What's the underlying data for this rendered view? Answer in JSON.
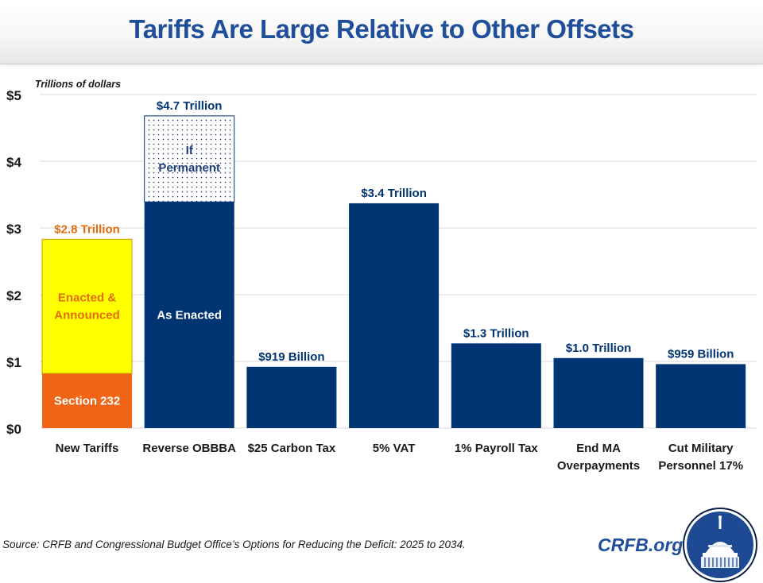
{
  "title": "Tariffs Are Large Relative to Other Offsets",
  "source": "Source: CRFB and Congressional Budget Office’s Options for Reducing the Deficit: 2025 to 2034.",
  "brand": "CRFB.org",
  "logo_icon": "capitol-dome-logo-icon",
  "colors": {
    "title": "#1f4e9b",
    "navy": "#003473",
    "orange": "#f06414",
    "orange_text": "#e46c0a",
    "yellow": "#ffff00",
    "grid": "#d9d9d9",
    "axis_text": "#1a1a1a"
  },
  "chart_data": {
    "type": "bar",
    "title": "Tariffs Are Large Relative to Other Offsets",
    "unit_label": "Trillions of dollars",
    "xlabel": "",
    "ylabel": "Trillions of dollars",
    "ylim": [
      0,
      5
    ],
    "yticks": [
      0,
      1,
      2,
      3,
      4,
      5
    ],
    "ytick_labels": [
      "$0",
      "$1",
      "$2",
      "$3",
      "$4",
      "$5"
    ],
    "grid": true,
    "categories": [
      [
        "New Tariffs"
      ],
      [
        "Reverse OBBBA"
      ],
      [
        "$25 Carbon Tax"
      ],
      [
        "5% VAT"
      ],
      [
        "1% Payroll Tax"
      ],
      [
        "End MA",
        "Overpayments"
      ],
      [
        "Cut Military",
        "Personnel 17%"
      ]
    ],
    "bars": [
      {
        "category": "New Tariffs",
        "total": 2.83,
        "total_label": "$2.8 Trillion",
        "label_color": "orange_text",
        "segments": [
          {
            "name": "Section 232",
            "value": 0.82,
            "style": "orange",
            "label": "Section 232",
            "label_color": "#ffffff"
          },
          {
            "name": "Enacted & Announced",
            "value": 2.01,
            "style": "yellow",
            "label_lines": [
              "Enacted &",
              "Announced"
            ],
            "label_color": "#e46c0a"
          }
        ]
      },
      {
        "category": "Reverse OBBBA",
        "total": 4.68,
        "total_label": "$4.7 Trillion",
        "label_color": "navy",
        "segments": [
          {
            "name": "As Enacted",
            "value": 3.39,
            "style": "navy",
            "label": "As Enacted",
            "label_color": "#ffffff"
          },
          {
            "name": "If Permanent",
            "value": 1.29,
            "style": "dotted",
            "label_lines": [
              "If",
              "Permanent"
            ],
            "label_color": "#1f3f7a"
          }
        ]
      },
      {
        "category": "$25 Carbon Tax",
        "total": 0.919,
        "total_label": "$919 Billion",
        "label_color": "navy",
        "segments": [
          {
            "name": "total",
            "value": 0.919,
            "style": "navy"
          }
        ]
      },
      {
        "category": "5% VAT",
        "total": 3.37,
        "total_label": "$3.4 Trillion",
        "label_color": "navy",
        "segments": [
          {
            "name": "total",
            "value": 3.37,
            "style": "navy"
          }
        ]
      },
      {
        "category": "1% Payroll Tax",
        "total": 1.27,
        "total_label": "$1.3 Trillion",
        "label_color": "navy",
        "segments": [
          {
            "name": "total",
            "value": 1.27,
            "style": "navy"
          }
        ]
      },
      {
        "category": "End MA Overpayments",
        "total": 1.05,
        "total_label": "$1.0 Trillion",
        "label_color": "navy",
        "segments": [
          {
            "name": "total",
            "value": 1.05,
            "style": "navy"
          }
        ]
      },
      {
        "category": "Cut Military Personnel 17%",
        "total": 0.959,
        "total_label": "$959 Billion",
        "label_color": "navy",
        "segments": [
          {
            "name": "total",
            "value": 0.959,
            "style": "navy"
          }
        ]
      }
    ]
  }
}
